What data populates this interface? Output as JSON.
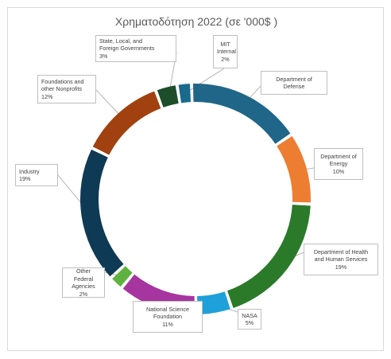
{
  "chart_data": {
    "type": "pie",
    "variant": "donut",
    "title": "Χρηματοδότηση 2022 (σε '000$ )",
    "legend": "none",
    "slices": [
      {
        "label": "Department of Defense",
        "value": 16,
        "percent_label": "",
        "color": "#1f6688"
      },
      {
        "label": "Department of Energy",
        "value": 10,
        "percent_label": "10%",
        "color": "#ed7d31"
      },
      {
        "label": "Department of Health and Human Services",
        "value": 19,
        "percent_label": "19%",
        "color": "#2a7a2a"
      },
      {
        "label": "NASA",
        "value": 5,
        "percent_label": "5%",
        "color": "#1ea0da"
      },
      {
        "label": "National Science Foundation",
        "value": 11,
        "percent_label": "11%",
        "color": "#a6359f"
      },
      {
        "label": "Other Federal Agencies",
        "value": 2,
        "percent_label": "2%",
        "color": "#5db33e"
      },
      {
        "label": "Industry",
        "value": 19,
        "percent_label": "19%",
        "color": "#0f3a55"
      },
      {
        "label": "Foundations and other Nonprofits",
        "value": 12,
        "percent_label": "12%",
        "color": "#a0410f"
      },
      {
        "label": "State, Local, and Foreign Governments",
        "value": 3,
        "percent_label": "3%",
        "color": "#1d4d2a"
      },
      {
        "label": "MIT Internal",
        "value": 2,
        "percent_label": "2%",
        "color": "#1a6a8e"
      }
    ]
  },
  "callouts": [
    {
      "lines": "Department of\nDefense"
    },
    {
      "lines": "Department of\nEnergy\n10%"
    },
    {
      "lines": "Department of Health\nand Human Services\n19%"
    },
    {
      "lines": "NASA\n5%"
    },
    {
      "lines": "National Science\nFoundation\n11%"
    },
    {
      "lines": "Other Federal\nAgencies\n2%"
    },
    {
      "lines": "Industry\n19%"
    },
    {
      "lines": "Foundations and\nother Nonprofits\n12%"
    },
    {
      "lines": "State, Local, and\nForeign Governments\n3%"
    },
    {
      "lines": "MIT\nInternal\n2%"
    }
  ]
}
